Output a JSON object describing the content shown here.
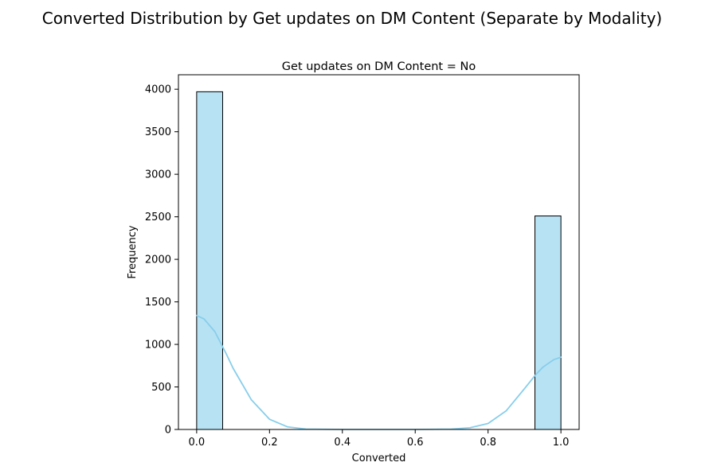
{
  "chart_data": {
    "type": "bar",
    "suptitle": "Converted Distribution by Get updates on DM Content (Separate by Modality)",
    "title": "Get updates on DM Content = No",
    "xlabel": "Converted",
    "ylabel": "Frequency",
    "xlim": [
      -0.05,
      1.05
    ],
    "ylim": [
      0,
      4170
    ],
    "x_ticks": [
      0.0,
      0.2,
      0.4,
      0.6,
      0.8,
      1.0
    ],
    "x_tick_labels": [
      "0.0",
      "0.2",
      "0.4",
      "0.6",
      "0.8",
      "1.0"
    ],
    "y_ticks": [
      0,
      500,
      1000,
      1500,
      2000,
      2500,
      3000,
      3500,
      4000
    ],
    "y_tick_labels": [
      "0",
      "500",
      "1000",
      "1500",
      "2000",
      "2500",
      "3000",
      "3500",
      "4000"
    ],
    "bins": [
      {
        "x0": 0.0,
        "x1": 0.0714,
        "count": 3970
      },
      {
        "x0": 0.9286,
        "x1": 1.0,
        "count": 2510
      }
    ],
    "kde": {
      "x": [
        0.0,
        0.02,
        0.05,
        0.08,
        0.1,
        0.15,
        0.2,
        0.25,
        0.3,
        0.4,
        0.5,
        0.6,
        0.7,
        0.75,
        0.8,
        0.85,
        0.9,
        0.93,
        0.95,
        0.98,
        1.0
      ],
      "y": [
        1340,
        1300,
        1150,
        900,
        720,
        350,
        120,
        30,
        5,
        0,
        0,
        0,
        5,
        20,
        70,
        220,
        480,
        640,
        730,
        820,
        850
      ]
    },
    "bar_fill": "#87CEEB",
    "bar_fill_opacity": 0.6,
    "bar_edge": "#000000",
    "kde_color": "#87CEEB",
    "grid": false,
    "legend": "none"
  }
}
